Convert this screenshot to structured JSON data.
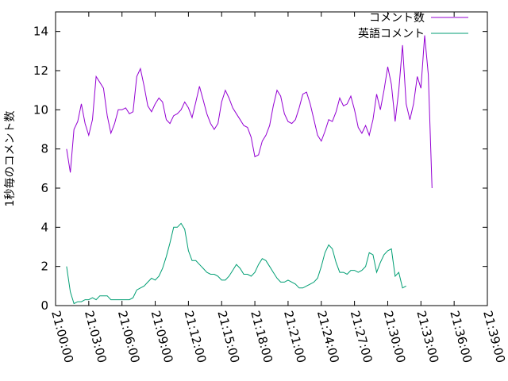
{
  "chart_data": {
    "type": "line",
    "title": "",
    "xlabel": "",
    "ylabel": "1秒毎のコメント数",
    "xlim": [
      "21:00:00",
      "21:39:00"
    ],
    "ylim": [
      0,
      15
    ],
    "xticks": [
      "21:00:00",
      "21:03:00",
      "21:06:00",
      "21:09:00",
      "21:12:00",
      "21:15:00",
      "21:18:00",
      "21:21:00",
      "21:24:00",
      "21:27:00",
      "21:30:00",
      "21:33:00",
      "21:36:00",
      "21:39:00"
    ],
    "yticks": [
      0,
      2,
      4,
      6,
      8,
      10,
      12,
      14
    ],
    "grid": false,
    "legend": "top-right",
    "series": [
      {
        "name": "コメント数",
        "color": "#9400d3",
        "points": [
          [
            "21:01:00",
            8.0
          ],
          [
            "21:01:20",
            6.8
          ],
          [
            "21:01:40",
            9.0
          ],
          [
            "21:02:00",
            9.4
          ],
          [
            "21:02:20",
            10.3
          ],
          [
            "21:02:40",
            9.3
          ],
          [
            "21:03:00",
            8.7
          ],
          [
            "21:03:20",
            9.5
          ],
          [
            "21:03:40",
            11.7
          ],
          [
            "21:04:00",
            11.4
          ],
          [
            "21:04:20",
            11.1
          ],
          [
            "21:04:40",
            9.7
          ],
          [
            "21:05:00",
            8.8
          ],
          [
            "21:05:20",
            9.3
          ],
          [
            "21:05:40",
            10.0
          ],
          [
            "21:06:00",
            10.0
          ],
          [
            "21:06:20",
            10.1
          ],
          [
            "21:06:40",
            9.8
          ],
          [
            "21:07:00",
            9.9
          ],
          [
            "21:07:20",
            11.7
          ],
          [
            "21:07:40",
            12.1
          ],
          [
            "21:08:00",
            11.2
          ],
          [
            "21:08:20",
            10.2
          ],
          [
            "21:08:40",
            9.9
          ],
          [
            "21:09:00",
            10.3
          ],
          [
            "21:09:20",
            10.6
          ],
          [
            "21:09:40",
            10.4
          ],
          [
            "21:10:00",
            9.5
          ],
          [
            "21:10:20",
            9.3
          ],
          [
            "21:10:40",
            9.7
          ],
          [
            "21:11:00",
            9.8
          ],
          [
            "21:11:20",
            10.0
          ],
          [
            "21:11:40",
            10.4
          ],
          [
            "21:12:00",
            10.1
          ],
          [
            "21:12:20",
            9.6
          ],
          [
            "21:12:40",
            10.4
          ],
          [
            "21:13:00",
            11.2
          ],
          [
            "21:13:20",
            10.5
          ],
          [
            "21:13:40",
            9.8
          ],
          [
            "21:14:00",
            9.3
          ],
          [
            "21:14:20",
            9.0
          ],
          [
            "21:14:40",
            9.3
          ],
          [
            "21:15:00",
            10.4
          ],
          [
            "21:15:20",
            11.0
          ],
          [
            "21:15:40",
            10.6
          ],
          [
            "21:16:00",
            10.1
          ],
          [
            "21:16:20",
            9.8
          ],
          [
            "21:16:40",
            9.5
          ],
          [
            "21:17:00",
            9.2
          ],
          [
            "21:17:20",
            9.1
          ],
          [
            "21:17:40",
            8.6
          ],
          [
            "21:18:00",
            7.6
          ],
          [
            "21:18:20",
            7.7
          ],
          [
            "21:18:40",
            8.4
          ],
          [
            "21:19:00",
            8.7
          ],
          [
            "21:19:20",
            9.2
          ],
          [
            "21:19:40",
            10.2
          ],
          [
            "21:20:00",
            11.0
          ],
          [
            "21:20:20",
            10.7
          ],
          [
            "21:20:40",
            9.8
          ],
          [
            "21:21:00",
            9.4
          ],
          [
            "21:21:20",
            9.3
          ],
          [
            "21:21:40",
            9.5
          ],
          [
            "21:22:00",
            10.1
          ],
          [
            "21:22:20",
            10.8
          ],
          [
            "21:22:40",
            10.9
          ],
          [
            "21:23:00",
            10.3
          ],
          [
            "21:23:20",
            9.5
          ],
          [
            "21:23:40",
            8.7
          ],
          [
            "21:24:00",
            8.4
          ],
          [
            "21:24:20",
            8.9
          ],
          [
            "21:24:40",
            9.5
          ],
          [
            "21:25:00",
            9.4
          ],
          [
            "21:25:20",
            9.9
          ],
          [
            "21:25:40",
            10.6
          ],
          [
            "21:26:00",
            10.2
          ],
          [
            "21:26:20",
            10.3
          ],
          [
            "21:26:40",
            10.7
          ],
          [
            "21:27:00",
            10.0
          ],
          [
            "21:27:20",
            9.1
          ],
          [
            "21:27:40",
            8.8
          ],
          [
            "21:28:00",
            9.2
          ],
          [
            "21:28:20",
            8.7
          ],
          [
            "21:28:40",
            9.5
          ],
          [
            "21:29:00",
            10.8
          ],
          [
            "21:29:20",
            10.0
          ],
          [
            "21:29:40",
            11.0
          ],
          [
            "21:30:00",
            12.2
          ],
          [
            "21:30:20",
            11.3
          ],
          [
            "21:30:40",
            9.4
          ],
          [
            "21:31:00",
            11.0
          ],
          [
            "21:31:20",
            13.3
          ],
          [
            "21:31:40",
            10.3
          ],
          [
            "21:32:00",
            9.5
          ],
          [
            "21:32:20",
            10.3
          ],
          [
            "21:32:40",
            11.7
          ],
          [
            "21:33:00",
            11.1
          ],
          [
            "21:33:20",
            13.8
          ],
          [
            "21:33:40",
            11.8
          ],
          [
            "21:34:00",
            6.0
          ]
        ]
      },
      {
        "name": "英語コメント",
        "color": "#009e73",
        "points": [
          [
            "21:01:00",
            2.0
          ],
          [
            "21:01:20",
            0.7
          ],
          [
            "21:01:40",
            0.1
          ],
          [
            "21:02:00",
            0.2
          ],
          [
            "21:02:20",
            0.2
          ],
          [
            "21:02:40",
            0.3
          ],
          [
            "21:03:00",
            0.3
          ],
          [
            "21:03:20",
            0.4
          ],
          [
            "21:03:40",
            0.3
          ],
          [
            "21:04:00",
            0.5
          ],
          [
            "21:04:20",
            0.5
          ],
          [
            "21:04:40",
            0.5
          ],
          [
            "21:05:00",
            0.3
          ],
          [
            "21:05:20",
            0.3
          ],
          [
            "21:05:40",
            0.3
          ],
          [
            "21:06:00",
            0.3
          ],
          [
            "21:06:20",
            0.3
          ],
          [
            "21:06:40",
            0.3
          ],
          [
            "21:07:00",
            0.4
          ],
          [
            "21:07:20",
            0.8
          ],
          [
            "21:07:40",
            0.9
          ],
          [
            "21:08:00",
            1.0
          ],
          [
            "21:08:20",
            1.2
          ],
          [
            "21:08:40",
            1.4
          ],
          [
            "21:09:00",
            1.3
          ],
          [
            "21:09:20",
            1.5
          ],
          [
            "21:09:40",
            1.9
          ],
          [
            "21:10:00",
            2.5
          ],
          [
            "21:10:20",
            3.2
          ],
          [
            "21:10:40",
            4.0
          ],
          [
            "21:11:00",
            4.0
          ],
          [
            "21:11:20",
            4.2
          ],
          [
            "21:11:40",
            3.9
          ],
          [
            "21:12:00",
            2.8
          ],
          [
            "21:12:20",
            2.3
          ],
          [
            "21:12:40",
            2.3
          ],
          [
            "21:13:00",
            2.1
          ],
          [
            "21:13:20",
            1.9
          ],
          [
            "21:13:40",
            1.7
          ],
          [
            "21:14:00",
            1.6
          ],
          [
            "21:14:20",
            1.6
          ],
          [
            "21:14:40",
            1.5
          ],
          [
            "21:15:00",
            1.3
          ],
          [
            "21:15:20",
            1.3
          ],
          [
            "21:15:40",
            1.5
          ],
          [
            "21:16:00",
            1.8
          ],
          [
            "21:16:20",
            2.1
          ],
          [
            "21:16:40",
            1.9
          ],
          [
            "21:17:00",
            1.6
          ],
          [
            "21:17:20",
            1.6
          ],
          [
            "21:17:40",
            1.5
          ],
          [
            "21:18:00",
            1.7
          ],
          [
            "21:18:20",
            2.1
          ],
          [
            "21:18:40",
            2.4
          ],
          [
            "21:19:00",
            2.3
          ],
          [
            "21:19:20",
            2.0
          ],
          [
            "21:19:40",
            1.7
          ],
          [
            "21:20:00",
            1.4
          ],
          [
            "21:20:20",
            1.2
          ],
          [
            "21:20:40",
            1.2
          ],
          [
            "21:21:00",
            1.3
          ],
          [
            "21:21:20",
            1.2
          ],
          [
            "21:21:40",
            1.1
          ],
          [
            "21:22:00",
            0.9
          ],
          [
            "21:22:20",
            0.9
          ],
          [
            "21:22:40",
            1.0
          ],
          [
            "21:23:00",
            1.1
          ],
          [
            "21:23:20",
            1.2
          ],
          [
            "21:23:40",
            1.4
          ],
          [
            "21:24:00",
            2.0
          ],
          [
            "21:24:20",
            2.7
          ],
          [
            "21:24:40",
            3.1
          ],
          [
            "21:25:00",
            2.9
          ],
          [
            "21:25:20",
            2.2
          ],
          [
            "21:25:40",
            1.7
          ],
          [
            "21:26:00",
            1.7
          ],
          [
            "21:26:20",
            1.6
          ],
          [
            "21:26:40",
            1.8
          ],
          [
            "21:27:00",
            1.8
          ],
          [
            "21:27:20",
            1.7
          ],
          [
            "21:27:40",
            1.8
          ],
          [
            "21:28:00",
            2.0
          ],
          [
            "21:28:20",
            2.7
          ],
          [
            "21:28:40",
            2.6
          ],
          [
            "21:29:00",
            1.7
          ],
          [
            "21:29:20",
            2.2
          ],
          [
            "21:29:40",
            2.6
          ],
          [
            "21:30:00",
            2.8
          ],
          [
            "21:30:20",
            2.9
          ],
          [
            "21:30:40",
            1.5
          ],
          [
            "21:31:00",
            1.7
          ],
          [
            "21:31:20",
            0.9
          ],
          [
            "21:31:40",
            1.0
          ]
        ]
      }
    ]
  }
}
